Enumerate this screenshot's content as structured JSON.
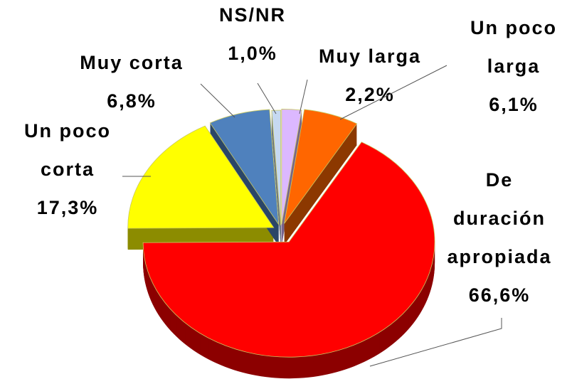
{
  "chart_data": {
    "type": "pie3d",
    "categories": [
      "Muy larga",
      "Un poco larga",
      "De duración apropiada",
      "Un poco corta",
      "Muy corta",
      "NS/NR"
    ],
    "values": [
      2.2,
      6.1,
      66.6,
      17.3,
      6.8,
      1.0
    ],
    "value_labels": [
      "2,2%",
      "6,1%",
      "66,6%",
      "17,3%",
      "6,8%",
      "1,0%"
    ],
    "colors": [
      "#dcb8ff",
      "#ff6600",
      "#ff0000",
      "#ffff00",
      "#4f81bd",
      "#c6d9f1"
    ]
  }
}
